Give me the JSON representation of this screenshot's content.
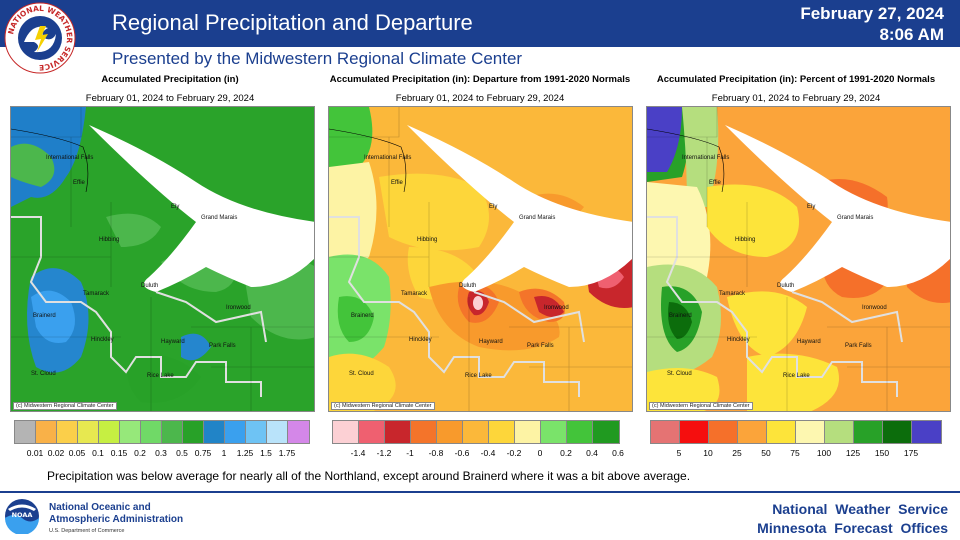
{
  "header": {
    "title": "Regional Precipitation and Departure",
    "subtitle": "Presented by the Midwestern Regional Climate Center",
    "date": "February 27, 2024",
    "time": "8:06 AM",
    "logo_ring_text": "NATIONAL WEATHER SERVICE"
  },
  "panels": [
    {
      "title": "Accumulated Precipitation (in)",
      "dates": "February 01, 2024 to February 29, 2024",
      "credit": "(c) Midwestern Regional Climate Center",
      "legend": {
        "colors": [
          "#b4b4b4",
          "#f9b148",
          "#fbcf4a",
          "#e7e850",
          "#c6ef42",
          "#96e87a",
          "#70d967",
          "#4cb74c",
          "#28a128",
          "#2184c7",
          "#3aa0ee",
          "#6ec3f4",
          "#b9e3fa",
          "#d487e8"
        ],
        "labels": [
          "0.01",
          "0.02",
          "0.05",
          "0.1",
          "0.15",
          "0.2",
          "0.3",
          "0.5",
          "0.75",
          "1",
          "1.25",
          "1.5",
          "1.75"
        ]
      }
    },
    {
      "title": "Accumulated Precipitation (in): Departure from 1991-2020 Normals",
      "dates": "February 01, 2024 to February 29, 2024",
      "credit": "(c) Midwestern Regional Climate Center",
      "legend": {
        "colors": [
          "#fcd0d4",
          "#ef6070",
          "#c8262c",
          "#f4742a",
          "#f89a2c",
          "#fbb83a",
          "#fdd63a",
          "#fdf3a4",
          "#7ae36a",
          "#43c43a",
          "#209a20"
        ],
        "labels": [
          "-1.4",
          "-1.2",
          "-1",
          "-0.8",
          "-0.6",
          "-0.4",
          "-0.2",
          "0",
          "0.2",
          "0.4",
          "0.6"
        ]
      }
    },
    {
      "title": "Accumulated Precipitation (in): Percent of 1991-2020 Normals",
      "dates": "February 01, 2024 to February 29, 2024",
      "credit": "(c) Midwestern Regional Climate Center",
      "legend": {
        "colors": [
          "#e57373",
          "#f50e0e",
          "#f5702a",
          "#fba43a",
          "#fde43a",
          "#fdf7b0",
          "#b5de7e",
          "#28a128",
          "#0c6d0c",
          "#4a40c6"
        ],
        "labels": [
          "5",
          "10",
          "25",
          "50",
          "75",
          "100",
          "125",
          "150",
          "175"
        ]
      }
    }
  ],
  "cities": [
    "International Falls",
    "Effie",
    "Ely",
    "Grand Marais",
    "Hibbing",
    "Duluth",
    "Tamarack",
    "Ironwood",
    "Brainerd",
    "Hinckley",
    "Hayward",
    "Park Falls",
    "St. Cloud",
    "Rice Lake"
  ],
  "caption": "Precipitation was below average for nearly all of the Northland, except around Brainerd where it was a bit above average.",
  "footer": {
    "noaa_line1": "National Oceanic and",
    "noaa_line2": "Atmospheric Administration",
    "noaa_dept": "U.S. Department of Commerce",
    "noaa_logo_text": "NOAA",
    "nws_line1": "National Weather Service",
    "nws_line2": "Minnesota Forecast Offices"
  }
}
